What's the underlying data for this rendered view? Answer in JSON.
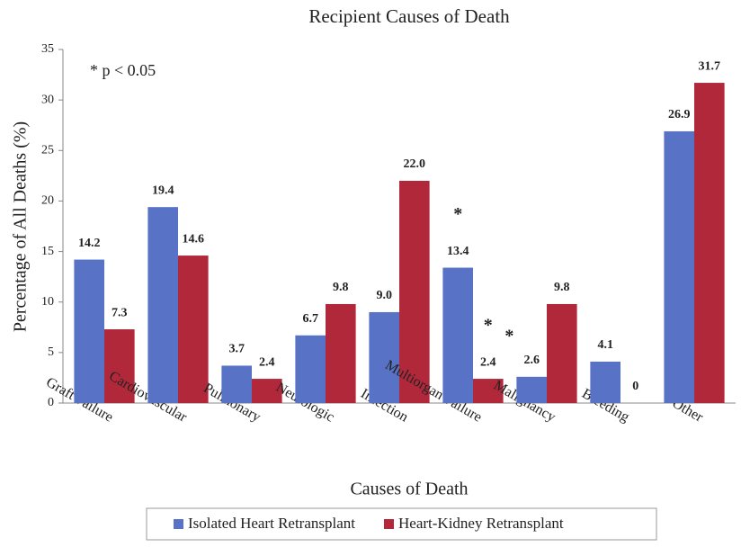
{
  "chart_data": {
    "type": "bar",
    "title": "Recipient Causes of Death",
    "xlabel": "Causes of Death",
    "ylabel": "Percentage of All Deaths (%)",
    "categories": [
      "Graft Failure",
      "Cardiovascular",
      "Pulmonary",
      "Neurologic",
      "Infection",
      "Multiorgan Failure",
      "Malignancy",
      "Bleeding",
      "Other"
    ],
    "series": [
      {
        "name": "Isolated Heart Retransplant",
        "color": "#5873c5",
        "values": [
          14.2,
          19.4,
          3.7,
          6.7,
          9,
          13.4,
          2.6,
          4.1,
          26.9
        ],
        "value_labels": [
          "14.2",
          "19.4",
          "3.7",
          "6.7",
          "9.0",
          "13.4",
          "2.6",
          "4.1",
          "26.9"
        ]
      },
      {
        "name": "Heart-Kidney Retransplant",
        "color": "#b2283b",
        "values": [
          7.3,
          14.6,
          2.4,
          9.8,
          22,
          2.4,
          9.8,
          0,
          31.7
        ],
        "value_labels": [
          "7.3",
          "14.6",
          "2.4",
          "9.8",
          "22.0",
          "2.4",
          "9.8",
          "0",
          "31.7"
        ]
      }
    ],
    "annotation": "* p < 0.05",
    "asterisks": [
      {
        "text": "*",
        "category": 5,
        "series": 0
      },
      {
        "text": "*",
        "category": 5,
        "series": 1
      },
      {
        "text": "*",
        "category": 6,
        "series": 0
      }
    ],
    "ylim": [
      0,
      35
    ],
    "yticks": [
      0,
      5,
      10,
      15,
      20,
      25,
      30,
      35
    ],
    "grid": false,
    "legend": "bottom"
  }
}
